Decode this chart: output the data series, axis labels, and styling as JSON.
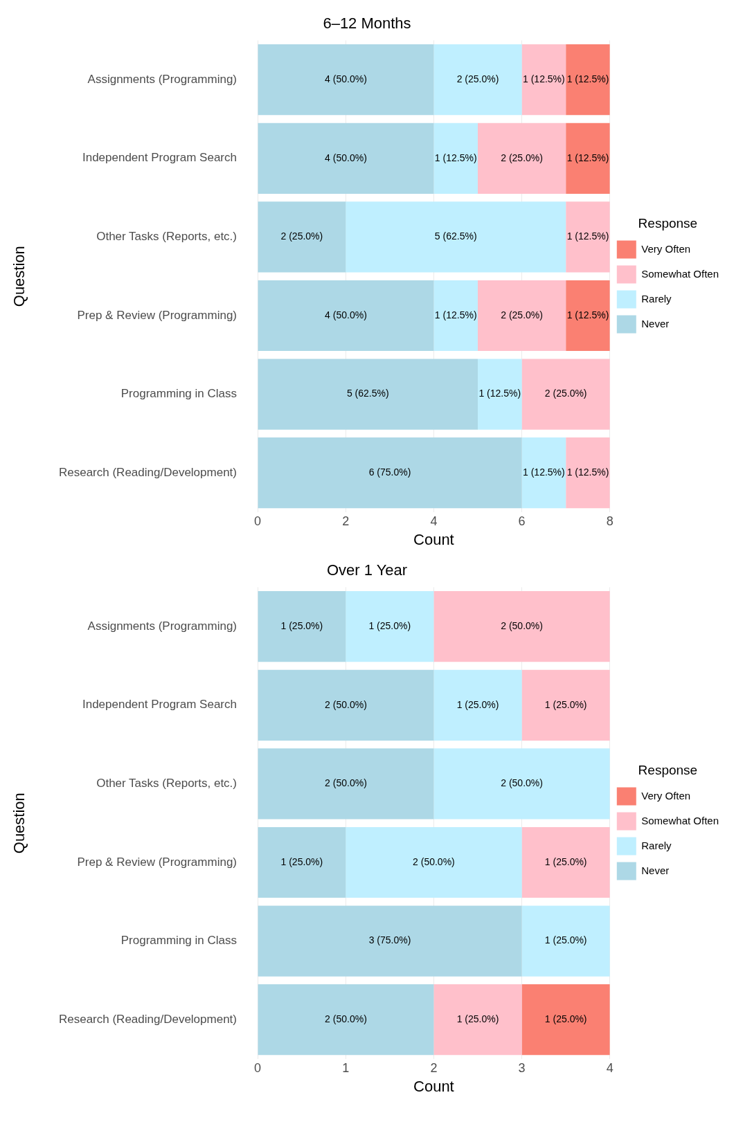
{
  "chart_data": [
    {
      "type": "bar",
      "orientation": "horizontal",
      "stacked": true,
      "title": "6–12 Months",
      "xlabel": "Count",
      "ylabel": "Question",
      "legend_title": "Response",
      "legend": "right",
      "grid": "x",
      "xlim": [
        0,
        8
      ],
      "xticks": [
        0,
        2,
        4,
        6,
        8
      ],
      "categories": [
        "Assignments (Programming)",
        "Independent Program Search",
        "Other Tasks (Reports, etc.)",
        "Prep & Review (Programming)",
        "Programming in Class",
        "Research (Reading/Development)"
      ],
      "series": [
        {
          "name": "Never",
          "color": "#add8e6",
          "values": [
            4,
            4,
            2,
            4,
            5,
            6
          ],
          "value_labels": [
            "4 (50.0%)",
            "4 (50.0%)",
            "2 (25.0%)",
            "4 (50.0%)",
            "5 (62.5%)",
            "6 (75.0%)"
          ]
        },
        {
          "name": "Rarely",
          "color": "#bfefff",
          "values": [
            2,
            1,
            5,
            1,
            1,
            1
          ],
          "value_labels": [
            "2 (25.0%)",
            "1 (12.5%)",
            "5 (62.5%)",
            "1 (12.5%)",
            "1 (12.5%)",
            "1 (12.5%)"
          ]
        },
        {
          "name": "Somewhat Often",
          "color": "#ffc0cb",
          "values": [
            1,
            2,
            1,
            2,
            2,
            1
          ],
          "value_labels": [
            "1 (12.5%)",
            "2 (25.0%)",
            "1 (12.5%)",
            "2 (25.0%)",
            "2 (25.0%)",
            "1 (12.5%)"
          ]
        },
        {
          "name": "Very Often",
          "color": "#fa8072",
          "values": [
            1,
            1,
            null,
            1,
            null,
            null
          ],
          "value_labels": [
            "1 (12.5%)",
            "1 (12.5%)",
            null,
            "1 (12.5%)",
            null,
            null
          ]
        }
      ]
    },
    {
      "type": "bar",
      "orientation": "horizontal",
      "stacked": true,
      "title": "Over 1 Year",
      "xlabel": "Count",
      "ylabel": "Question",
      "legend_title": "Response",
      "legend": "right",
      "grid": "x",
      "xlim": [
        0,
        4
      ],
      "xticks": [
        0,
        1,
        2,
        3,
        4
      ],
      "categories": [
        "Assignments (Programming)",
        "Independent Program Search",
        "Other Tasks (Reports, etc.)",
        "Prep & Review (Programming)",
        "Programming in Class",
        "Research (Reading/Development)"
      ],
      "series": [
        {
          "name": "Never",
          "color": "#add8e6",
          "values": [
            1,
            2,
            2,
            1,
            3,
            2
          ],
          "value_labels": [
            "1 (25.0%)",
            "2 (50.0%)",
            "2 (50.0%)",
            "1 (25.0%)",
            "3 (75.0%)",
            "2 (50.0%)"
          ]
        },
        {
          "name": "Rarely",
          "color": "#bfefff",
          "values": [
            1,
            1,
            2,
            2,
            1,
            null
          ],
          "value_labels": [
            "1 (25.0%)",
            "1 (25.0%)",
            "2 (50.0%)",
            "2 (50.0%)",
            "1 (25.0%)",
            null
          ]
        },
        {
          "name": "Somewhat Often",
          "color": "#ffc0cb",
          "values": [
            2,
            1,
            null,
            1,
            null,
            1
          ],
          "value_labels": [
            "2 (50.0%)",
            "1 (25.0%)",
            null,
            "1 (25.0%)",
            null,
            "1 (25.0%)"
          ]
        },
        {
          "name": "Very Often",
          "color": "#fa8072",
          "values": [
            null,
            null,
            null,
            null,
            null,
            1
          ],
          "value_labels": [
            null,
            null,
            null,
            null,
            null,
            "1 (25.0%)"
          ]
        }
      ]
    }
  ]
}
